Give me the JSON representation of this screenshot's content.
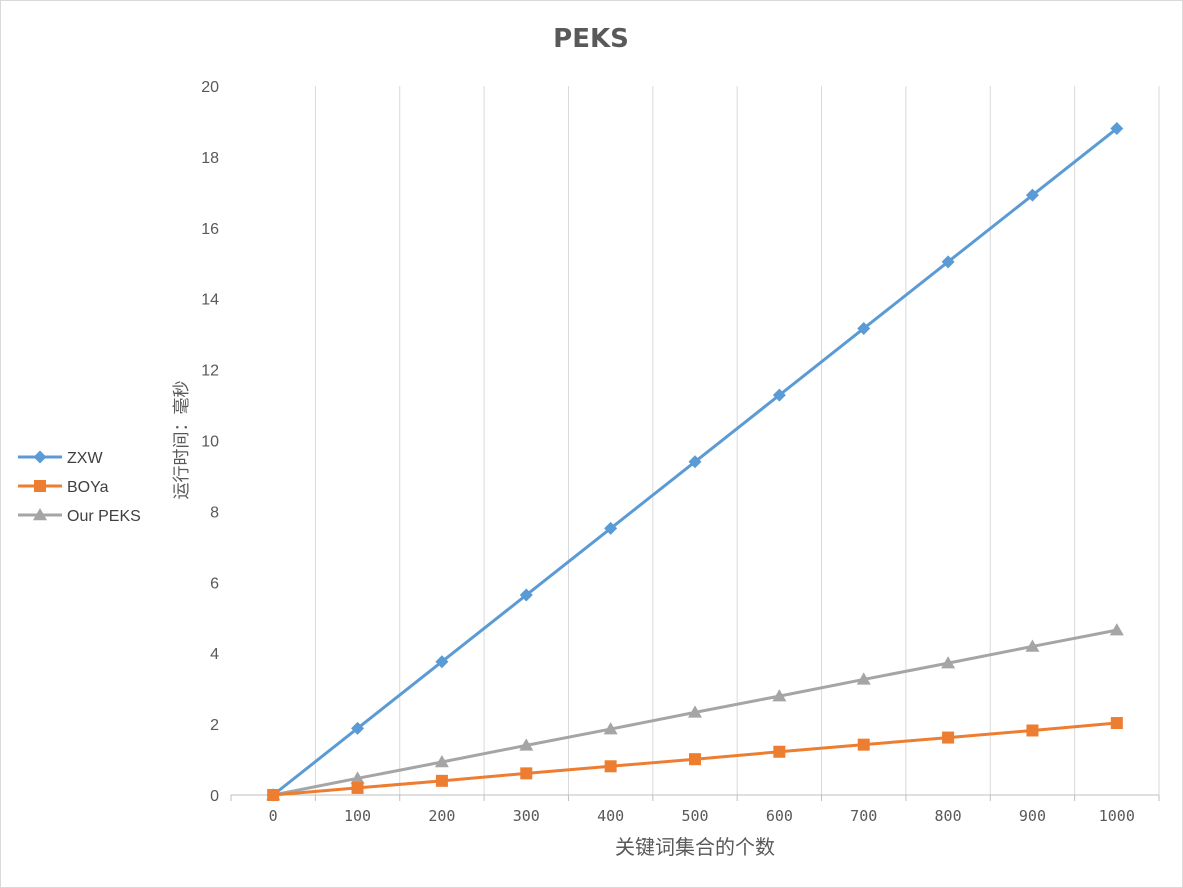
{
  "chart_data": {
    "type": "line",
    "title": "PEKS",
    "xlabel": "关键词集合的个数",
    "ylabel": "运行时间：毫秒",
    "categories": [
      "0",
      "100",
      "200",
      "300",
      "400",
      "500",
      "600",
      "700",
      "800",
      "900",
      "1000"
    ],
    "y_ticks": [
      "0",
      "2",
      "4",
      "6",
      "8",
      "10",
      "12",
      "14",
      "16",
      "18",
      "20"
    ],
    "ylim": [
      0,
      20
    ],
    "grid": "vertical",
    "legend_position": "left",
    "series": [
      {
        "name": "ZXW",
        "color": "#5B9BD5",
        "marker": "diamond",
        "values": [
          0,
          1.88,
          3.76,
          5.64,
          7.52,
          9.4,
          11.28,
          13.16,
          15.04,
          16.92,
          18.8
        ]
      },
      {
        "name": "BOYa",
        "color": "#ED7D31",
        "marker": "square",
        "values": [
          0,
          0.2,
          0.4,
          0.61,
          0.81,
          1.01,
          1.22,
          1.42,
          1.62,
          1.82,
          2.03
        ]
      },
      {
        "name": "Our PEKS",
        "color": "#A5A5A5",
        "marker": "triangle",
        "values": [
          0,
          0.47,
          0.93,
          1.4,
          1.86,
          2.33,
          2.79,
          3.26,
          3.72,
          4.19,
          4.65
        ]
      }
    ]
  }
}
